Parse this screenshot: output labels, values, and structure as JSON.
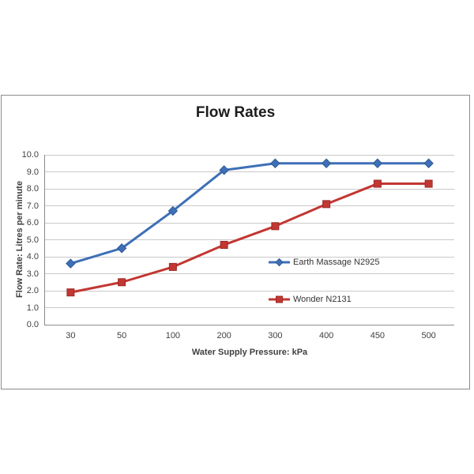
{
  "chart": {
    "border_color": "#8c8c8c",
    "axis_line_color": "#8c8c8c",
    "gridline_color": "#c9c9c9",
    "tick_label_color": "#3f3f3f",
    "title_color": "#1c1c1c",
    "background": "#ffffff"
  },
  "chart_data": {
    "type": "line",
    "title": "Flow Rates",
    "xlabel": "Water Supply Pressure: kPa",
    "ylabel": "Flow Rate: Litres per minute",
    "categories": [
      "30",
      "50",
      "100",
      "200",
      "300",
      "400",
      "450",
      "500"
    ],
    "series": [
      {
        "name": "Earth Massage N2925",
        "color": "#3e6fb7",
        "marker_stroke": "#2e5a99",
        "marker": "diamond",
        "values": [
          3.6,
          4.5,
          6.7,
          9.1,
          9.5,
          9.5,
          9.5,
          9.5
        ]
      },
      {
        "name": "Wonder N2131",
        "color": "#c23732",
        "marker_stroke": "#9c2a27",
        "marker": "square",
        "values": [
          1.9,
          2.5,
          3.4,
          4.7,
          5.8,
          7.1,
          8.3,
          8.3
        ]
      }
    ],
    "ylim": [
      0,
      10
    ],
    "ytick_labels": [
      "0.0",
      "1.0",
      "2.0",
      "3.0",
      "4.0",
      "5.0",
      "6.0",
      "7.0",
      "8.0",
      "9.0",
      "10.0"
    ],
    "grid": true,
    "legend_position": "inside-right"
  }
}
